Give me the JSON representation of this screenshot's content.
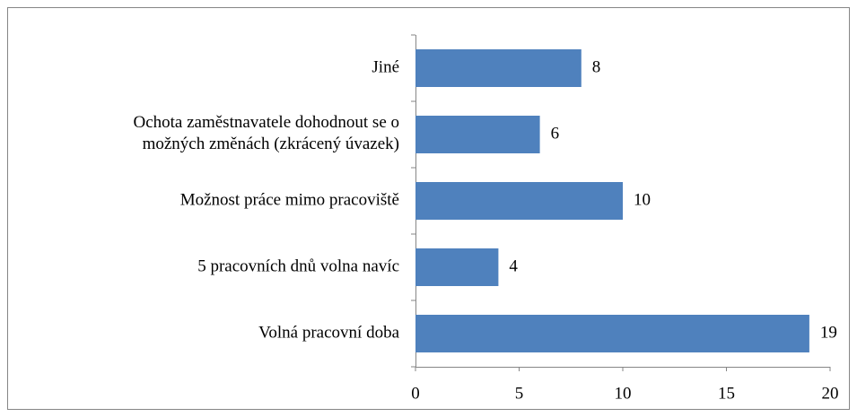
{
  "chart_data": {
    "type": "barh",
    "categories": [
      "Jiné",
      "Ochota zaměstnavatele dohodnout se o\nmožných změnách (zkrácený úvazek)",
      "Možnost práce mimo pracoviště",
      "5 pracovních dnů volna navíc",
      "Volná pracovní doba"
    ],
    "values": [
      8,
      6,
      10,
      4,
      19
    ],
    "color": "#4f81bd",
    "xlim": [
      0,
      20
    ],
    "xticks": [
      0,
      5,
      10,
      15,
      20
    ],
    "grid": false
  }
}
